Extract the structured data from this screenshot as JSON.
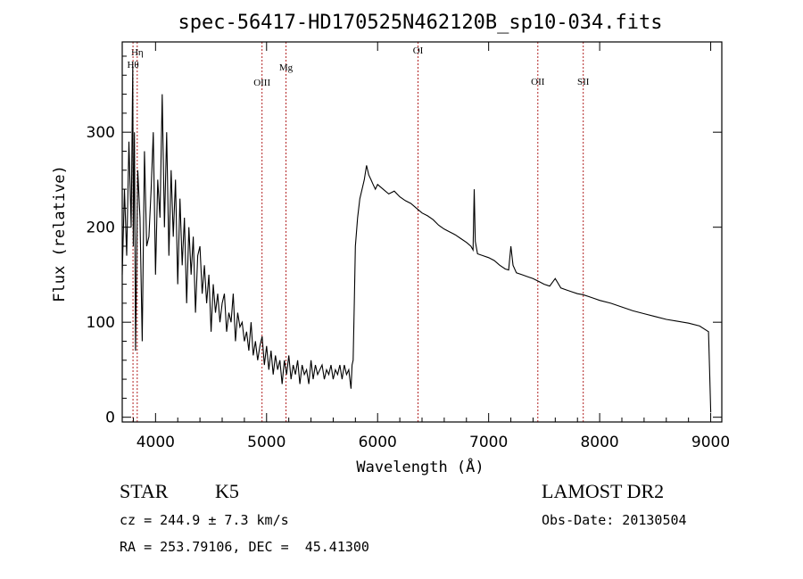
{
  "chart_data": {
    "type": "line",
    "title": "spec-56417-HD170525N462120B_sp10-034.fits",
    "xlabel": "Wavelength (Å)",
    "ylabel": "Flux (relative)",
    "xlim": [
      3700,
      9100
    ],
    "ylim": [
      -5,
      395
    ],
    "xticks": [
      4000,
      5000,
      6000,
      7000,
      8000,
      9000
    ],
    "yticks": [
      0,
      100,
      200,
      300
    ],
    "grid": false,
    "line_color": "#000000",
    "marker_color": "#b22222",
    "spectral_lines": [
      {
        "name": "Hη",
        "x": 3835
      },
      {
        "name": "Hθ",
        "x": 3797
      },
      {
        "name": "OIII",
        "x": 4959
      },
      {
        "name": "Mg",
        "x": 5175
      },
      {
        "name": "OI",
        "x": 6364
      },
      {
        "name": "OII",
        "x": 7443
      },
      {
        "name": "SII",
        "x": 7852
      }
    ],
    "series": [
      {
        "x": [
          3700,
          3720,
          3740,
          3760,
          3780,
          3795,
          3800,
          3810,
          3820,
          3840,
          3860,
          3880,
          3900,
          3920,
          3940,
          3960,
          3980,
          4000,
          4020,
          4040,
          4060,
          4080,
          4100,
          4120,
          4140,
          4160,
          4180,
          4200,
          4220,
          4240,
          4260,
          4280,
          4300,
          4320,
          4340,
          4360,
          4380,
          4400,
          4420,
          4440,
          4460,
          4480,
          4500,
          4520,
          4540,
          4560,
          4580,
          4600,
          4620,
          4640,
          4660,
          4680,
          4700,
          4720,
          4740,
          4760,
          4780,
          4800,
          4820,
          4840,
          4860,
          4880,
          4900,
          4920,
          4940,
          4960,
          4980,
          5000,
          5020,
          5040,
          5060,
          5080,
          5100,
          5120,
          5140,
          5160,
          5180,
          5200,
          5220,
          5240,
          5260,
          5280,
          5300,
          5320,
          5340,
          5360,
          5380,
          5400,
          5420,
          5440,
          5460,
          5480,
          5500,
          5520,
          5540,
          5560,
          5580,
          5600,
          5620,
          5640,
          5660,
          5680,
          5700,
          5720,
          5740,
          5760,
          5770,
          5780,
          5790,
          5800,
          5820,
          5840,
          5860,
          5880,
          5900,
          5920,
          5940,
          5960,
          5980,
          6000,
          6050,
          6100,
          6150,
          6200,
          6250,
          6300,
          6350,
          6400,
          6450,
          6500,
          6550,
          6600,
          6650,
          6700,
          6750,
          6800,
          6840,
          6860,
          6870,
          6880,
          6900,
          6950,
          7000,
          7050,
          7100,
          7150,
          7180,
          7200,
          7220,
          7250,
          7300,
          7350,
          7400,
          7450,
          7500,
          7550,
          7600,
          7650,
          7700,
          7750,
          7800,
          7850,
          7900,
          7950,
          8000,
          8100,
          8200,
          8300,
          8400,
          8500,
          8600,
          8700,
          8800,
          8900,
          8980,
          8990,
          9000
        ],
        "y": [
          150,
          240,
          170,
          290,
          200,
          370,
          180,
          300,
          70,
          260,
          210,
          80,
          280,
          180,
          190,
          240,
          300,
          150,
          250,
          210,
          340,
          200,
          300,
          170,
          260,
          190,
          250,
          140,
          230,
          160,
          210,
          120,
          200,
          150,
          190,
          110,
          170,
          180,
          130,
          160,
          120,
          150,
          90,
          140,
          110,
          130,
          100,
          120,
          130,
          90,
          110,
          100,
          130,
          80,
          110,
          95,
          100,
          80,
          90,
          70,
          100,
          65,
          80,
          60,
          75,
          85,
          55,
          75,
          50,
          70,
          45,
          65,
          50,
          60,
          35,
          60,
          45,
          65,
          40,
          55,
          45,
          60,
          35,
          55,
          45,
          50,
          35,
          60,
          40,
          55,
          45,
          50,
          55,
          40,
          50,
          45,
          55,
          40,
          50,
          45,
          55,
          40,
          55,
          45,
          50,
          30,
          55,
          60,
          120,
          180,
          210,
          230,
          240,
          250,
          265,
          255,
          250,
          245,
          240,
          245,
          240,
          235,
          238,
          232,
          228,
          225,
          220,
          215,
          212,
          208,
          202,
          198,
          195,
          192,
          188,
          184,
          180,
          176,
          240,
          185,
          172,
          170,
          168,
          165,
          160,
          156,
          155,
          180,
          160,
          152,
          150,
          148,
          146,
          143,
          140,
          138,
          146,
          136,
          134,
          132,
          130,
          129,
          127,
          125,
          123,
          120,
          116,
          112,
          109,
          106,
          103,
          101,
          99,
          96,
          90,
          50,
          5
        ]
      }
    ]
  },
  "info": {
    "object_type": "STAR",
    "subclass": "K5",
    "survey": "LAMOST DR2",
    "redshift_line": "cz = 244.9 ± 7.3 km/s",
    "obs_date": "Obs-Date: 20130504",
    "coords": "RA = 253.79106, DEC =  45.41300"
  }
}
